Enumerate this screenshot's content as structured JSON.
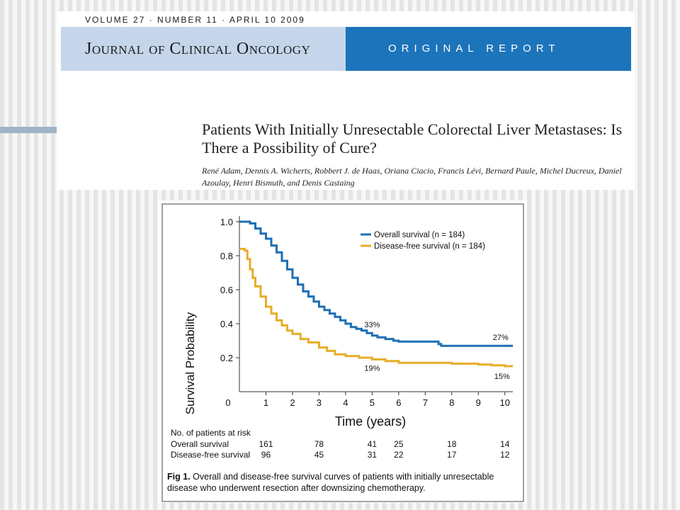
{
  "header": {
    "issue": "VOLUME 27 · NUMBER 11 · APRIL 10 2009",
    "journal": "Journal of Clinical Oncology",
    "section": "ORIGINAL REPORT"
  },
  "article": {
    "title": "Patients With Initially Unresectable Colorectal Liver Metastases: Is There a Possibility of Cure?",
    "authors": "René Adam, Dennis A. Wicherts, Robbert J. de Haas, Oriana Ciacio, Francis Lévi, Bernard Paule, Michel Ducreux, Daniel Azoulay, Henri Bismuth, and Denis Castaing"
  },
  "figure": {
    "label": "Fig 1.",
    "caption": "Overall and disease-free survival curves of patients with initially unresectable disease who underwent resection after downsizing chemotherapy."
  },
  "colors": {
    "overall": "#1c6fb5",
    "disease_free": "#e6ae2a",
    "report_band": "#1c74bb",
    "journal_band": "#c5d5ea"
  },
  "chart_data": {
    "type": "line",
    "title": "",
    "xlabel": "Time (years)",
    "ylabel": "Survival Probability",
    "xlim": [
      0,
      10.3
    ],
    "ylim": [
      0,
      1.0
    ],
    "x_ticks": [
      0,
      1,
      2,
      3,
      4,
      5,
      6,
      7,
      8,
      9,
      10
    ],
    "y_ticks": [
      0.2,
      0.4,
      0.6,
      0.8,
      1.0
    ],
    "y_tick_labels": [
      "0.2",
      "0.4",
      "0.6",
      "0.8",
      "1.0"
    ],
    "legend_position": "top-right",
    "series": [
      {
        "name": "Overall survival (n = 184)",
        "color": "#1c6fb5",
        "x": [
          0,
          0.1,
          0.25,
          0.4,
          0.6,
          0.8,
          1.0,
          1.2,
          1.4,
          1.6,
          1.8,
          2.0,
          2.2,
          2.4,
          2.6,
          2.8,
          3.0,
          3.2,
          3.4,
          3.6,
          3.8,
          4.0,
          4.2,
          4.4,
          4.6,
          4.8,
          5.0,
          5.2,
          5.5,
          5.8,
          6.0,
          6.5,
          7.0,
          7.4,
          7.5,
          7.6,
          8.0,
          9.0,
          10.0,
          10.3
        ],
        "y": [
          1.0,
          1.0,
          1.0,
          0.99,
          0.96,
          0.93,
          0.9,
          0.86,
          0.82,
          0.77,
          0.72,
          0.67,
          0.63,
          0.59,
          0.56,
          0.53,
          0.5,
          0.48,
          0.46,
          0.44,
          0.42,
          0.4,
          0.38,
          0.37,
          0.36,
          0.345,
          0.33,
          0.32,
          0.31,
          0.3,
          0.295,
          0.295,
          0.295,
          0.295,
          0.28,
          0.27,
          0.27,
          0.27,
          0.27,
          0.27
        ]
      },
      {
        "name": "Disease-free survival (n = 184)",
        "color": "#e6ae2a",
        "x": [
          0,
          0.1,
          0.2,
          0.3,
          0.4,
          0.5,
          0.6,
          0.8,
          1.0,
          1.2,
          1.4,
          1.6,
          1.8,
          2.0,
          2.3,
          2.6,
          3.0,
          3.3,
          3.6,
          4.0,
          4.5,
          5.0,
          5.5,
          6.0,
          7.0,
          8.0,
          9.0,
          9.5,
          10.0,
          10.3
        ],
        "y": [
          0.84,
          0.84,
          0.83,
          0.78,
          0.72,
          0.67,
          0.62,
          0.56,
          0.5,
          0.46,
          0.42,
          0.39,
          0.36,
          0.34,
          0.31,
          0.29,
          0.26,
          0.24,
          0.22,
          0.21,
          0.2,
          0.19,
          0.18,
          0.17,
          0.17,
          0.165,
          0.16,
          0.155,
          0.15,
          0.15
        ]
      }
    ],
    "annotations": [
      {
        "text": "33%",
        "x": 5.0,
        "y": 0.33,
        "series": "Overall survival (n = 184)"
      },
      {
        "text": "27%",
        "x": 10.0,
        "y": 0.27,
        "series": "Overall survival (n = 184)"
      },
      {
        "text": "19%",
        "x": 5.0,
        "y": 0.19,
        "series": "Disease-free survival (n = 184)"
      },
      {
        "text": "15%",
        "x": 10.0,
        "y": 0.15,
        "series": "Disease-free survival (n = 184)"
      }
    ],
    "risk_table": {
      "title": "No. of patients at risk",
      "rows": [
        {
          "label": "Overall survival",
          "x": [
            1,
            3,
            5,
            6,
            8,
            10
          ],
          "values": [
            "161",
            "78",
            "41",
            "25",
            "18",
            "14"
          ]
        },
        {
          "label": "Disease-free survival",
          "x": [
            1,
            3,
            5,
            6,
            8,
            10
          ],
          "values": [
            "96",
            "45",
            "31",
            "22",
            "17",
            "12"
          ]
        }
      ]
    }
  }
}
